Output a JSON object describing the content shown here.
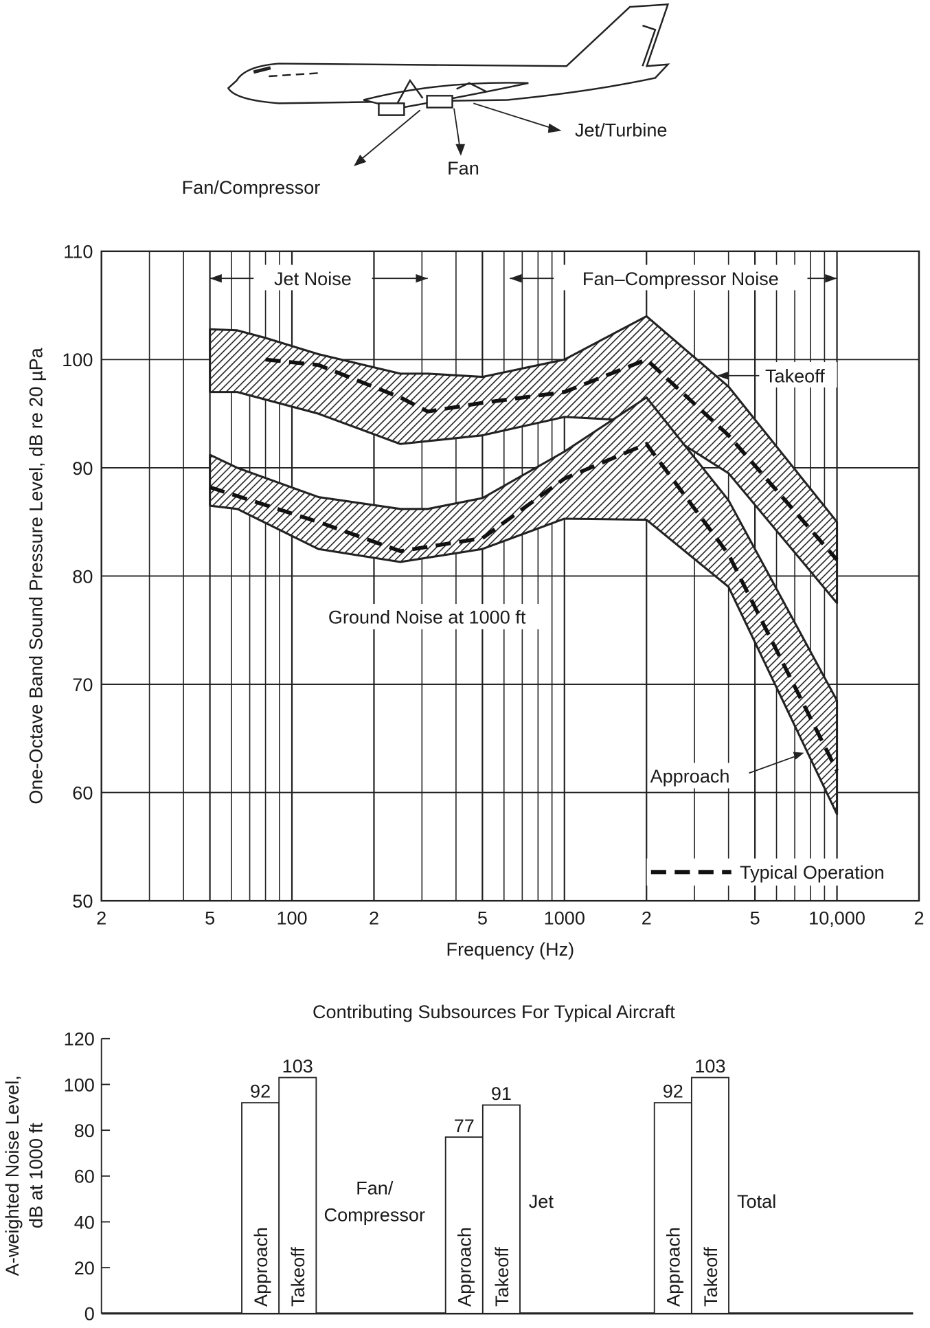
{
  "aircraft": {
    "labels": [
      "Jet/Turbine",
      "Fan",
      "Fan/Compressor"
    ]
  },
  "chart_data": [
    {
      "type": "area",
      "xlabel": "Frequency (Hz)",
      "ylabel": "One-Octave Band Sound Pressure Level, dB re 20 µPa",
      "xscale": "log",
      "xlim": [
        20,
        20000
      ],
      "ylim": [
        50,
        110
      ],
      "grid": true,
      "x_ticks": [
        20,
        50,
        100,
        200,
        500,
        1000,
        2000,
        5000,
        10000,
        20000
      ],
      "x_tick_labels": [
        "2",
        "5",
        "100",
        "2",
        "5",
        "1000",
        "2",
        "5",
        "10,000",
        "2"
      ],
      "y_ticks": [
        50,
        60,
        70,
        80,
        90,
        100,
        110
      ],
      "y_tick_labels": [
        "50",
        "60",
        "70",
        "80",
        "90",
        "100",
        "110"
      ],
      "annotations": {
        "jet_noise": "Jet Noise",
        "fan_noise": "Fan–Compressor Noise",
        "takeoff": "Takeoff",
        "approach": "Approach",
        "ground": "Ground Noise at 1000 ft",
        "legend_typical": "Typical Operation"
      },
      "legend_placement": "bottom-right",
      "series": [
        {
          "name": "Takeoff",
          "upper": [
            [
              50,
              102.8
            ],
            [
              63,
              102.7
            ],
            [
              80,
              102
            ],
            [
              125,
              100.5
            ],
            [
              250,
              98.7
            ],
            [
              315,
              98.7
            ],
            [
              500,
              98.4
            ],
            [
              1000,
              100
            ],
            [
              2000,
              104
            ],
            [
              4000,
              97.5
            ],
            [
              10000,
              85
            ]
          ],
          "lower": [
            [
              50,
              97
            ],
            [
              63,
              97
            ],
            [
              125,
              95
            ],
            [
              250,
              92.2
            ],
            [
              500,
              93
            ],
            [
              1000,
              94.7
            ],
            [
              2000,
              94.3
            ],
            [
              4000,
              89.5
            ],
            [
              10000,
              77.5
            ]
          ],
          "typical": [
            [
              80,
              100
            ],
            [
              125,
              99.5
            ],
            [
              250,
              96.5
            ],
            [
              315,
              95.2
            ],
            [
              500,
              96
            ],
            [
              1000,
              97
            ],
            [
              2000,
              100
            ],
            [
              4000,
              93
            ],
            [
              10000,
              81.5
            ]
          ]
        },
        {
          "name": "Approach",
          "upper": [
            [
              50,
              91.2
            ],
            [
              63,
              90
            ],
            [
              125,
              87.3
            ],
            [
              250,
              86.2
            ],
            [
              315,
              86.2
            ],
            [
              500,
              87.2
            ],
            [
              1000,
              91.5
            ],
            [
              2000,
              96.5
            ],
            [
              4000,
              87
            ],
            [
              10000,
              68.5
            ]
          ],
          "lower": [
            [
              50,
              86.5
            ],
            [
              63,
              86.2
            ],
            [
              125,
              82.5
            ],
            [
              250,
              81.3
            ],
            [
              500,
              82.5
            ],
            [
              1000,
              85.3
            ],
            [
              2000,
              85.2
            ],
            [
              4000,
              79
            ],
            [
              10000,
              58
            ]
          ],
          "typical": [
            [
              50,
              88.2
            ],
            [
              125,
              85
            ],
            [
              250,
              82.3
            ],
            [
              500,
              83.5
            ],
            [
              1000,
              89
            ],
            [
              2000,
              92.2
            ],
            [
              4000,
              82
            ],
            [
              10000,
              62
            ]
          ]
        }
      ]
    },
    {
      "type": "bar",
      "title": "Contributing Subsources For Typical Aircraft",
      "ylabel": [
        "A-weighted Noise Level,",
        "dB at 1000 ft"
      ],
      "ylim": [
        0,
        120
      ],
      "y_ticks": [
        0,
        20,
        40,
        60,
        80,
        100,
        120
      ],
      "groups": [
        {
          "name": [
            "Fan/",
            "Compressor"
          ],
          "bars": [
            {
              "label": "Approach",
              "value": 92
            },
            {
              "label": "Takeoff",
              "value": 103
            }
          ]
        },
        {
          "name": [
            "Jet"
          ],
          "bars": [
            {
              "label": "Approach",
              "value": 77
            },
            {
              "label": "Takeoff",
              "value": 91
            }
          ]
        },
        {
          "name": [
            "Total"
          ],
          "bars": [
            {
              "label": "Approach",
              "value": 92
            },
            {
              "label": "Takeoff",
              "value": 103
            }
          ]
        }
      ]
    }
  ]
}
